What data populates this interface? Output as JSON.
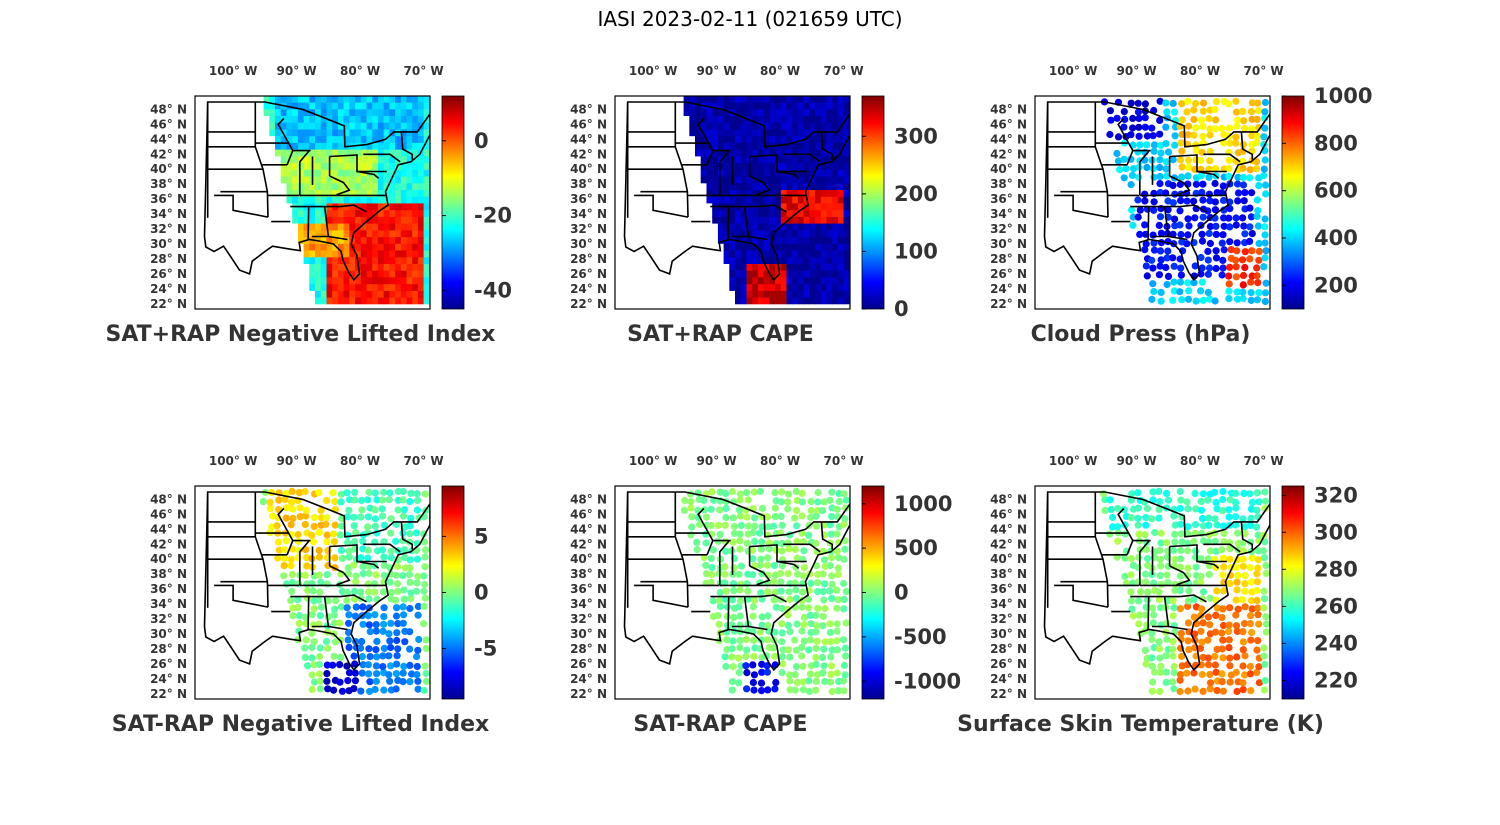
{
  "figure_title": "IASI 2023-02-11 (021659 UTC)",
  "colormap": [
    "#00008f",
    "#0000ff",
    "#0080ff",
    "#00ffff",
    "#80ff80",
    "#ffff00",
    "#ff8000",
    "#ff0000",
    "#800000"
  ],
  "chart_data": [
    {
      "type": "heatmap",
      "title": "SAT+RAP Negative Lifted Index",
      "lon_labels": [
        "100° W",
        "90° W",
        "80° W",
        "70° W"
      ],
      "lat_labels": [
        "48° N",
        "46° N",
        "44° N",
        "42° N",
        "40° N",
        "38° N",
        "36° N",
        "34° N",
        "32° N",
        "30° N",
        "28° N",
        "26° N",
        "24° N",
        "22° N"
      ],
      "colorbar": {
        "min": -45,
        "max": 12,
        "ticks": [
          0,
          -20,
          -40
        ],
        "tick_labels": [
          "0",
          "-20",
          "-40"
        ]
      },
      "render": "swath",
      "regions": [
        {
          "lon": [
            -94,
            -70
          ],
          "lat": [
            42,
            49.5
          ],
          "value": -27
        },
        {
          "lon": [
            -94,
            -78
          ],
          "lat": [
            36,
            42
          ],
          "value": -14
        },
        {
          "lon": [
            -86,
            -70
          ],
          "lat": [
            22,
            35
          ],
          "value": 4
        },
        {
          "lon": [
            -91,
            -82
          ],
          "lat": [
            28,
            32
          ],
          "value": -4
        }
      ],
      "background_value": -22
    },
    {
      "type": "heatmap",
      "title": "SAT+RAP CAPE",
      "lon_labels": [
        "100° W",
        "90° W",
        "80° W",
        "70° W"
      ],
      "lat_labels": [
        "48° N",
        "46° N",
        "44° N",
        "42° N",
        "40° N",
        "38° N",
        "36° N",
        "34° N",
        "32° N",
        "30° N",
        "28° N",
        "26° N",
        "24° N",
        "22° N"
      ],
      "colorbar": {
        "min": 0,
        "max": 370,
        "ticks": [
          300,
          200,
          100,
          0
        ],
        "tick_labels": [
          "300",
          "200",
          "100",
          "0"
        ]
      },
      "render": "swath",
      "regions": [
        {
          "lon": [
            -80,
            -70
          ],
          "lat": [
            32,
            37
          ],
          "value": 330
        },
        {
          "lon": [
            -86,
            -79
          ],
          "lat": [
            22,
            27
          ],
          "value": 340
        }
      ],
      "background_value": 10
    },
    {
      "type": "scatter",
      "title": "Cloud Press (hPa)",
      "lon_labels": [
        "100° W",
        "90° W",
        "80° W",
        "70° W"
      ],
      "lat_labels": [
        "48° N",
        "46° N",
        "44° N",
        "42° N",
        "40° N",
        "38° N",
        "36° N",
        "34° N",
        "32° N",
        "30° N",
        "28° N",
        "26° N",
        "24° N",
        "22° N"
      ],
      "colorbar": {
        "min": 100,
        "max": 1000,
        "ticks": [
          1000,
          800,
          600,
          400,
          200
        ],
        "tick_labels": [
          "1000",
          "800",
          "600",
          "400",
          "200"
        ]
      },
      "render": "dots",
      "regions": [
        {
          "lon": [
            -96,
            -86
          ],
          "lat": [
            44,
            49.5
          ],
          "value": 180
        },
        {
          "lon": [
            -84,
            -70
          ],
          "lat": [
            40,
            49.5
          ],
          "value": 700
        },
        {
          "lon": [
            -90,
            -71
          ],
          "lat": [
            25,
            38
          ],
          "value": 220
        },
        {
          "lon": [
            -76,
            -70
          ],
          "lat": [
            24,
            30
          ],
          "value": 850
        }
      ],
      "background_value": 400
    },
    {
      "type": "scatter",
      "title": "SAT-RAP Negative Lifted Index",
      "lon_labels": [
        "100° W",
        "90° W",
        "80° W",
        "70° W"
      ],
      "lat_labels": [
        "48° N",
        "46° N",
        "44° N",
        "42° N",
        "40° N",
        "38° N",
        "36° N",
        "34° N",
        "32° N",
        "30° N",
        "28° N",
        "26° N",
        "24° N",
        "22° N"
      ],
      "colorbar": {
        "min": -9.5,
        "max": 9.5,
        "ticks": [
          5,
          0,
          -5
        ],
        "tick_labels": [
          "5",
          "0",
          "-5"
        ]
      },
      "render": "dots",
      "regions": [
        {
          "lon": [
            -95,
            -82
          ],
          "lat": [
            38,
            49.5
          ],
          "value": 3
        },
        {
          "lon": [
            -84,
            -70
          ],
          "lat": [
            40,
            49.5
          ],
          "value": -1
        },
        {
          "lon": [
            -82,
            -70
          ],
          "lat": [
            22,
            34
          ],
          "value": -5
        },
        {
          "lon": [
            -86,
            -80
          ],
          "lat": [
            22,
            26
          ],
          "value": -8
        }
      ],
      "background_value": 0
    },
    {
      "type": "scatter",
      "title": "SAT-RAP CAPE",
      "lon_labels": [
        "100° W",
        "90° W",
        "80° W",
        "70° W"
      ],
      "lat_labels": [
        "48° N",
        "46° N",
        "44° N",
        "42° N",
        "40° N",
        "38° N",
        "36° N",
        "34° N",
        "32° N",
        "30° N",
        "28° N",
        "26° N",
        "24° N",
        "22° N"
      ],
      "colorbar": {
        "min": -1200,
        "max": 1200,
        "ticks": [
          1000,
          500,
          0,
          -500,
          -1000
        ],
        "tick_labels": [
          "1000",
          "500",
          "0",
          "-500",
          "-1000"
        ]
      },
      "render": "dots",
      "regions": [
        {
          "lon": [
            -86,
            -80
          ],
          "lat": [
            22,
            26
          ],
          "value": -900
        }
      ],
      "background_value": 0
    },
    {
      "type": "scatter",
      "title": "Surface Skin Temperature (K)",
      "lon_labels": [
        "100° W",
        "90° W",
        "80° W",
        "70° W"
      ],
      "lat_labels": [
        "48° N",
        "46° N",
        "44° N",
        "42° N",
        "40° N",
        "38° N",
        "36° N",
        "34° N",
        "32° N",
        "30° N",
        "28° N",
        "26° N",
        "24° N",
        "22° N"
      ],
      "colorbar": {
        "min": 210,
        "max": 325,
        "ticks": [
          320,
          300,
          280,
          260,
          240,
          220
        ],
        "tick_labels": [
          "320",
          "300",
          "280",
          "260",
          "240",
          "220"
        ]
      },
      "render": "dots",
      "regions": [
        {
          "lon": [
            -95,
            -70
          ],
          "lat": [
            44,
            49.5
          ],
          "value": 258
        },
        {
          "lon": [
            -78,
            -70
          ],
          "lat": [
            34,
            41
          ],
          "value": 285
        },
        {
          "lon": [
            -84,
            -70
          ],
          "lat": [
            22,
            34
          ],
          "value": 298
        }
      ],
      "background_value": 268
    }
  ]
}
